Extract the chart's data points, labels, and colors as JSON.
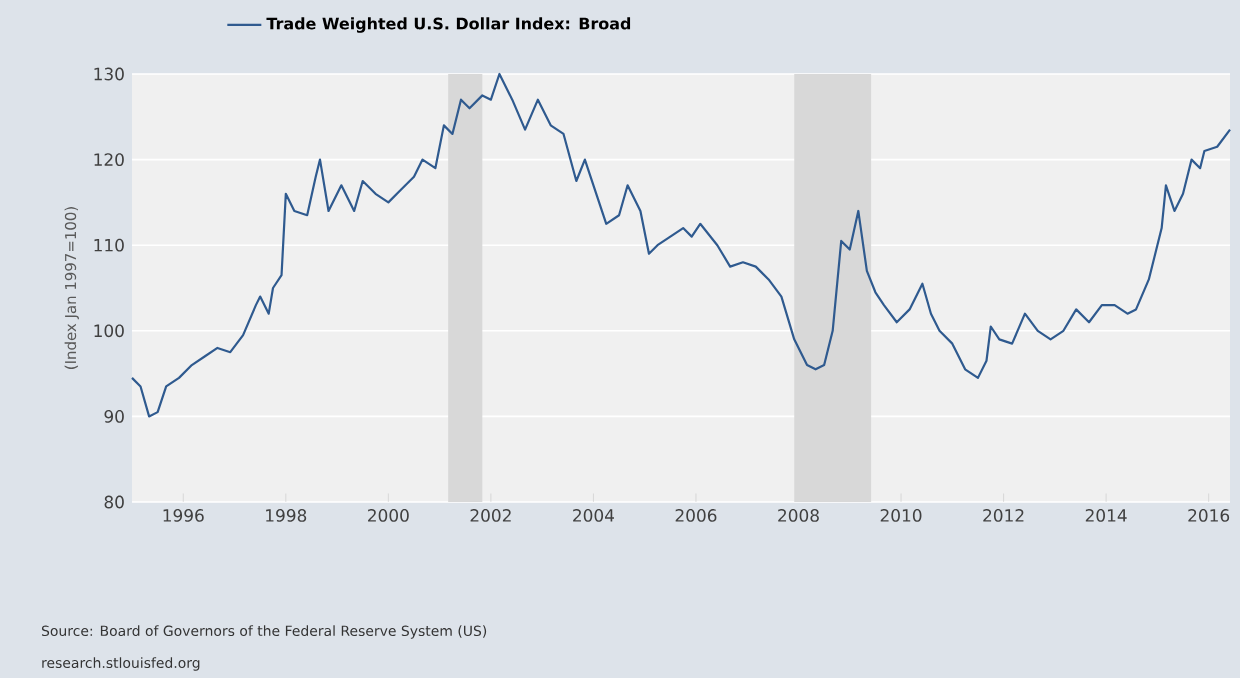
{
  "chart_data": {
    "type": "line",
    "ylabel": "(Index Jan 1997=100)",
    "annotations": [
      "Source: Board of Governors of the Federal Reserve System (US)",
      "research.stlouisfed.org"
    ],
    "x": [
      "1995-01",
      "1995-03",
      "1995-05",
      "1995-07",
      "1995-09",
      "1995-12",
      "1996-03",
      "1996-06",
      "1996-09",
      "1996-12",
      "1997-03",
      "1997-06",
      "1997-07",
      "1997-09",
      "1997-10",
      "1997-12",
      "1998-01",
      "1998-03",
      "1998-06",
      "1998-08",
      "1998-09",
      "1998-11",
      "1999-02",
      "1999-05",
      "1999-07",
      "1999-10",
      "2000-01",
      "2000-04",
      "2000-07",
      "2000-09",
      "2000-12",
      "2001-02",
      "2001-04",
      "2001-06",
      "2001-08",
      "2001-11",
      "2002-01",
      "2002-03",
      "2002-06",
      "2002-09",
      "2002-12",
      "2003-03",
      "2003-06",
      "2003-09",
      "2003-11",
      "2004-02",
      "2004-04",
      "2004-07",
      "2004-09",
      "2004-12",
      "2005-02",
      "2005-04",
      "2005-07",
      "2005-10",
      "2005-12",
      "2006-02",
      "2006-06",
      "2006-09",
      "2006-12",
      "2007-03",
      "2007-06",
      "2007-09",
      "2007-12",
      "2008-03",
      "2008-05",
      "2008-07",
      "2008-09",
      "2008-11",
      "2009-01",
      "2009-03",
      "2009-05",
      "2009-07",
      "2009-09",
      "2009-12",
      "2010-03",
      "2010-06",
      "2010-08",
      "2010-10",
      "2011-01",
      "2011-04",
      "2011-07",
      "2011-09",
      "2011-10",
      "2011-12",
      "2012-03",
      "2012-06",
      "2012-09",
      "2012-12",
      "2013-03",
      "2013-06",
      "2013-09",
      "2013-12",
      "2014-03",
      "2014-06",
      "2014-08",
      "2014-11",
      "2015-02",
      "2015-03",
      "2015-05",
      "2015-07",
      "2015-09",
      "2015-11",
      "2015-12",
      "2016-03",
      "2016-06"
    ],
    "series": [
      {
        "name": "Trade Weighted U.S. Dollar Index: Broad",
        "color": "#2f5a8f",
        "values": [
          94.5,
          93.5,
          90,
          90.5,
          93.5,
          94.5,
          96,
          97,
          98,
          97.5,
          99.5,
          103,
          104,
          102,
          105,
          106.5,
          116,
          114,
          113.5,
          118,
          120,
          114,
          117,
          114,
          117.5,
          116,
          115,
          116.5,
          118,
          120,
          119,
          124,
          123,
          127,
          126,
          127.5,
          127,
          130,
          127,
          123.5,
          127,
          124,
          123,
          117.5,
          120,
          115.5,
          112.5,
          113.5,
          117,
          114,
          109,
          110,
          111,
          112,
          111,
          112.5,
          110,
          107.5,
          108,
          107.5,
          106,
          104,
          99,
          96,
          95.5,
          96,
          100,
          110.5,
          109.5,
          114,
          107,
          104.5,
          103,
          101,
          102.5,
          105.5,
          102,
          100,
          98.5,
          95.5,
          94.5,
          96.5,
          100.5,
          99,
          98.5,
          102,
          100,
          99,
          100,
          102.5,
          101,
          103,
          103,
          102,
          102.5,
          106,
          112,
          117,
          114,
          116,
          120,
          119,
          121,
          121.5,
          123.5
        ]
      }
    ],
    "xlim": [
      "1995-01",
      "2016-06"
    ],
    "xticks": [
      "1996",
      "1998",
      "2000",
      "2002",
      "2004",
      "2006",
      "2008",
      "2010",
      "2012",
      "2014",
      "2016"
    ],
    "ylim": [
      80,
      130
    ],
    "yticks": [
      80,
      90,
      100,
      110,
      120,
      130
    ],
    "bands": [
      {
        "axis": "x",
        "from": "2001-03",
        "to": "2001-11",
        "color": "#d8d8d8"
      },
      {
        "axis": "x",
        "from": "2007-12",
        "to": "2009-06",
        "color": "#d8d8d8"
      }
    ],
    "grid": "y",
    "legend": "top left"
  }
}
